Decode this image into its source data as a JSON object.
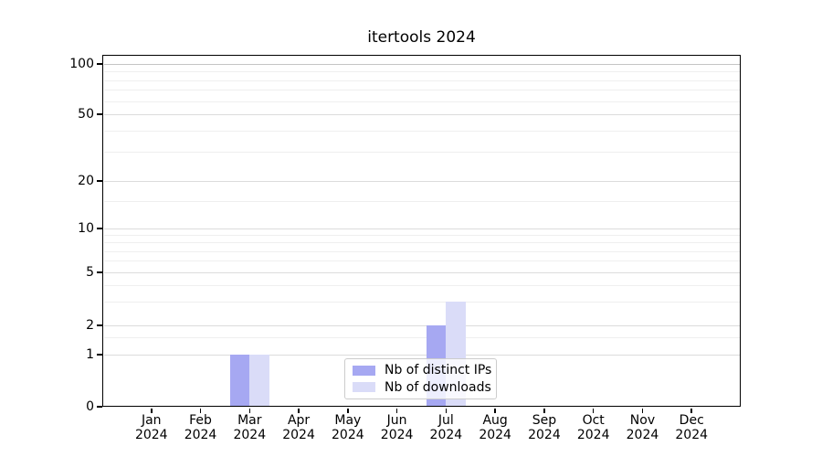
{
  "chart_data": {
    "type": "bar",
    "title": "itertools 2024",
    "categories": [
      "Jan",
      "Feb",
      "Mar",
      "Apr",
      "May",
      "Jun",
      "Jul",
      "Aug",
      "Sep",
      "Oct",
      "Nov",
      "Dec"
    ],
    "tick_year": "2024",
    "series": [
      {
        "name": "Nb of distinct IPs",
        "color": "#a6a8f2",
        "values": [
          0,
          0,
          1,
          0,
          0,
          0,
          2,
          0,
          0,
          0,
          0,
          0
        ]
      },
      {
        "name": "Nb of downloads",
        "color": "#dadcf8",
        "values": [
          0,
          0,
          1,
          0,
          0,
          0,
          3,
          0,
          0,
          0,
          0,
          0
        ]
      }
    ],
    "y_major_ticks": [
      0,
      1,
      2,
      5,
      10,
      20,
      50,
      100
    ],
    "y_minor_ticks": [
      1.5,
      3,
      4,
      6,
      7,
      8,
      9,
      15,
      30,
      40,
      60,
      70,
      80,
      90
    ],
    "ylim": [
      0,
      113
    ],
    "xlabel": "",
    "ylabel": "",
    "grid": "both",
    "legend_position": "lower center"
  }
}
